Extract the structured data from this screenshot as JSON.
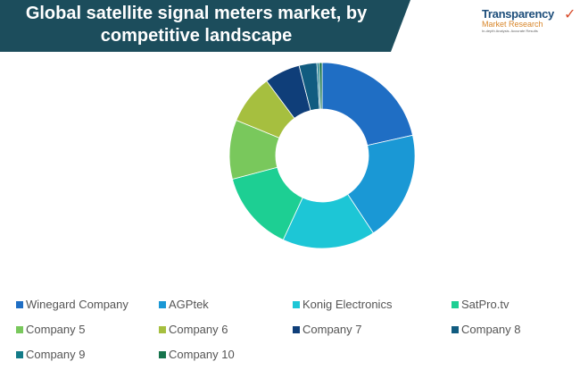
{
  "logo": {
    "line1": "Transparency",
    "line2": "Market Research",
    "line3": "In-depth Analysis. Accurate Results"
  },
  "chart_data": {
    "type": "pie",
    "variant": "donut",
    "title": "Global satellite signal meters market, by competitive landscape",
    "unit": "percent share (estimated)",
    "legend_position": "bottom",
    "categories": [
      "Winegard Company",
      "AGPtek",
      "Konig Electronics",
      "SatPro.tv",
      "Company 5",
      "Company 6",
      "Company 7",
      "Company 8",
      "Company 9",
      "Company 10"
    ],
    "values": [
      21.5,
      19.2,
      16.2,
      14.0,
      10.3,
      8.6,
      6.2,
      3.1,
      0.4,
      0.5
    ],
    "colors": [
      "#1f6ec4",
      "#1a98d5",
      "#1dc6d6",
      "#1dcf93",
      "#79c85c",
      "#a6bf3f",
      "#0f3e79",
      "#115c80",
      "#137b88",
      "#16744c"
    ]
  }
}
